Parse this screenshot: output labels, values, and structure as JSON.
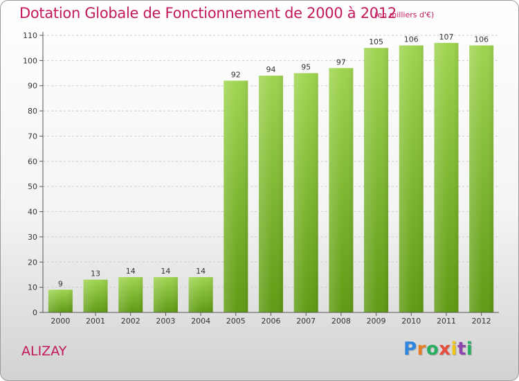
{
  "title": "Dotation Globale de Fonctionnement de 2000 à 2012",
  "unit_note": "(en milliers d'€)",
  "commune": "ALIZAY",
  "logo": {
    "text": "Proxiti",
    "letter_colors": [
      "#2e86de",
      "#e67e22",
      "#27ae60",
      "#e74c3c",
      "#f1c40f",
      "#8e44ad",
      "#27ae60"
    ]
  },
  "colors": {
    "title": "#c2185b",
    "bar_top": "#9ed44e",
    "bar_bottom": "#5e9a12",
    "grid": "#cccccc"
  },
  "chart_data": {
    "type": "bar",
    "categories": [
      "2000",
      "2001",
      "2002",
      "2003",
      "2004",
      "2005",
      "2006",
      "2007",
      "2008",
      "2009",
      "2010",
      "2011",
      "2012"
    ],
    "values": [
      9,
      13,
      14,
      14,
      14,
      92,
      94,
      95,
      97,
      105,
      106,
      107,
      106
    ],
    "ylim": [
      0,
      110
    ],
    "yticks": [
      0,
      10,
      20,
      30,
      40,
      50,
      60,
      70,
      80,
      90,
      100,
      110
    ],
    "grid": true,
    "title": "Dotation Globale de Fonctionnement de 2000 à 2012",
    "xlabel": "",
    "ylabel": ""
  }
}
